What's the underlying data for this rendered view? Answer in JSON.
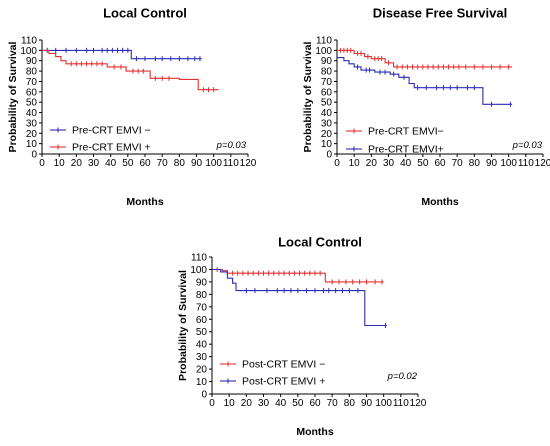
{
  "chart_data": [
    {
      "type": "line",
      "title": "Local Control",
      "xlabel": "Months",
      "ylabel": "Probability of Survival",
      "xlim": [
        0,
        120
      ],
      "ylim": [
        0,
        110
      ],
      "xticks": [
        0,
        10,
        20,
        30,
        40,
        50,
        60,
        70,
        80,
        90,
        100,
        110,
        120
      ],
      "yticks": [
        0,
        10,
        20,
        30,
        40,
        50,
        60,
        70,
        80,
        90,
        100,
        110
      ],
      "annotation": "p=0.03",
      "legend_position": "bottom-left",
      "series": [
        {
          "name": "Pre-CRT EMVI −",
          "color": "#2b2bb5",
          "steps": [
            [
              0,
              100
            ],
            [
              5,
              100
            ],
            [
              52,
              100
            ],
            [
              52,
              92
            ],
            [
              93,
              92
            ]
          ],
          "censor": [
            3,
            8,
            14,
            20,
            26,
            30,
            35,
            38,
            41,
            44,
            47,
            50,
            55,
            60,
            66,
            70,
            75,
            80,
            85,
            89,
            92
          ]
        },
        {
          "name": "Pre-CRT EMVI +",
          "color": "#e43030",
          "steps": [
            [
              0,
              100
            ],
            [
              4,
              100
            ],
            [
              4,
              97
            ],
            [
              8,
              97
            ],
            [
              8,
              94
            ],
            [
              11,
              94
            ],
            [
              11,
              90
            ],
            [
              14,
              90
            ],
            [
              14,
              87
            ],
            [
              38,
              87
            ],
            [
              38,
              84
            ],
            [
              49,
              84
            ],
            [
              49,
              80
            ],
            [
              63,
              80
            ],
            [
              63,
              73
            ],
            [
              80,
              73
            ],
            [
              80,
              72
            ],
            [
              91,
              72
            ],
            [
              91,
              62
            ],
            [
              103,
              62
            ]
          ],
          "censor": [
            17,
            20,
            23,
            26,
            29,
            32,
            35,
            42,
            46,
            53,
            56,
            59,
            66,
            70,
            74,
            94,
            97,
            100
          ]
        }
      ]
    },
    {
      "type": "line",
      "title": "Disease Free Survival",
      "xlabel": "Months",
      "ylabel": "Probability of Survival",
      "xlim": [
        0,
        120
      ],
      "ylim": [
        0,
        110
      ],
      "xticks": [
        0,
        10,
        20,
        30,
        40,
        50,
        60,
        70,
        80,
        90,
        100,
        110,
        120
      ],
      "yticks": [
        0,
        10,
        20,
        30,
        40,
        50,
        60,
        70,
        80,
        90,
        100,
        110
      ],
      "annotation": "p=0.03",
      "legend_position": "bottom-left",
      "series": [
        {
          "name": "Pre-CRT EMVI−",
          "color": "#e43030",
          "steps": [
            [
              0,
              100
            ],
            [
              10,
              100
            ],
            [
              10,
              97
            ],
            [
              16,
              97
            ],
            [
              16,
              94
            ],
            [
              20,
              94
            ],
            [
              20,
              92
            ],
            [
              28,
              92
            ],
            [
              28,
              88
            ],
            [
              33,
              88
            ],
            [
              33,
              84
            ],
            [
              102,
              84
            ]
          ],
          "censor": [
            2,
            4,
            6,
            8,
            12,
            14,
            18,
            22,
            24,
            26,
            30,
            35,
            38,
            41,
            44,
            47,
            50,
            53,
            56,
            59,
            62,
            65,
            68,
            71,
            75,
            80,
            85,
            90,
            95,
            100
          ]
        },
        {
          "name": "Pre-CRT EMVI+",
          "color": "#2b2bb5",
          "steps": [
            [
              0,
              93
            ],
            [
              4,
              93
            ],
            [
              4,
              90
            ],
            [
              7,
              90
            ],
            [
              7,
              87
            ],
            [
              10,
              87
            ],
            [
              10,
              84
            ],
            [
              14,
              84
            ],
            [
              14,
              81
            ],
            [
              22,
              81
            ],
            [
              22,
              79
            ],
            [
              31,
              79
            ],
            [
              31,
              77
            ],
            [
              36,
              77
            ],
            [
              36,
              74
            ],
            [
              42,
              74
            ],
            [
              42,
              68
            ],
            [
              45,
              68
            ],
            [
              45,
              64
            ],
            [
              85,
              64
            ],
            [
              85,
              48
            ],
            [
              102,
              48
            ]
          ],
          "censor": [
            12,
            17,
            19,
            25,
            28,
            33,
            39,
            47,
            52,
            58,
            62,
            66,
            70,
            76,
            80,
            90,
            101
          ]
        }
      ]
    },
    {
      "type": "line",
      "title": "Local Control",
      "xlabel": "Months",
      "ylabel": "Probability of Survival",
      "xlim": [
        0,
        120
      ],
      "ylim": [
        0,
        110
      ],
      "xticks": [
        0,
        10,
        20,
        30,
        40,
        50,
        60,
        70,
        80,
        90,
        100,
        110,
        120
      ],
      "yticks": [
        0,
        10,
        20,
        30,
        40,
        50,
        60,
        70,
        80,
        90,
        100,
        110
      ],
      "annotation": "p=0.02",
      "legend_position": "bottom-left",
      "series": [
        {
          "name": "Post-CRT EMVI −",
          "color": "#e43030",
          "steps": [
            [
              0,
              100
            ],
            [
              6,
              100
            ],
            [
              6,
              99
            ],
            [
              9,
              99
            ],
            [
              9,
              97
            ],
            [
              66,
              97
            ],
            [
              66,
              90
            ],
            [
              100,
              90
            ]
          ],
          "censor": [
            3,
            12,
            15,
            18,
            21,
            24,
            27,
            30,
            33,
            36,
            39,
            42,
            45,
            48,
            51,
            54,
            57,
            60,
            63,
            70,
            74,
            78,
            82,
            86,
            90,
            95,
            99
          ]
        },
        {
          "name": "Post-CRT EMVI +",
          "color": "#2b2bb5",
          "steps": [
            [
              0,
              100
            ],
            [
              5,
              100
            ],
            [
              5,
              98
            ],
            [
              9,
              98
            ],
            [
              9,
              93
            ],
            [
              12,
              93
            ],
            [
              12,
              89
            ],
            [
              14,
              89
            ],
            [
              14,
              83
            ],
            [
              89,
              83
            ],
            [
              89,
              55
            ],
            [
              102,
              55
            ]
          ],
          "censor": [
            20,
            25,
            32,
            38,
            42,
            46,
            50,
            55,
            60,
            65,
            68,
            72,
            76,
            80,
            85,
            101
          ]
        }
      ]
    }
  ]
}
